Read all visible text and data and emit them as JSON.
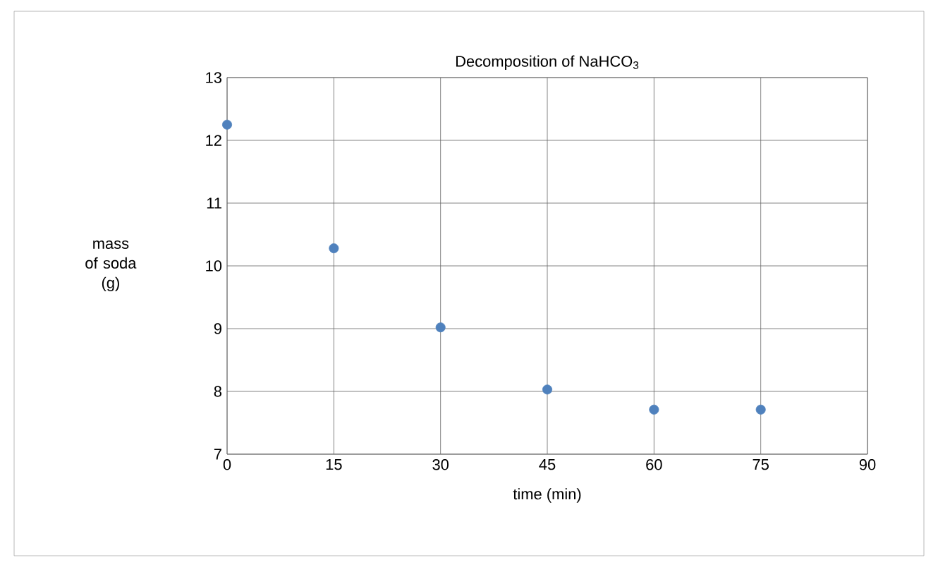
{
  "chart_data": {
    "type": "scatter",
    "title": "Decomposition of NaHCO$_{3}$",
    "xlabel": "time (min)",
    "ylabel": "mass of soda (g)",
    "x": [
      0,
      15,
      30,
      45,
      60,
      75
    ],
    "series": [
      {
        "color": "#4f81bd",
        "values": [
          12.25,
          10.28,
          9.02,
          8.03,
          7.71,
          7.71
        ]
      }
    ],
    "xlim": [
      0,
      90
    ],
    "xticks": [
      0,
      15,
      30,
      45,
      60,
      75,
      90
    ],
    "ylim": [
      7,
      13
    ],
    "yticks": [
      7,
      8,
      9,
      10,
      11,
      12,
      13
    ],
    "grid": true,
    "marker": "circle"
  }
}
